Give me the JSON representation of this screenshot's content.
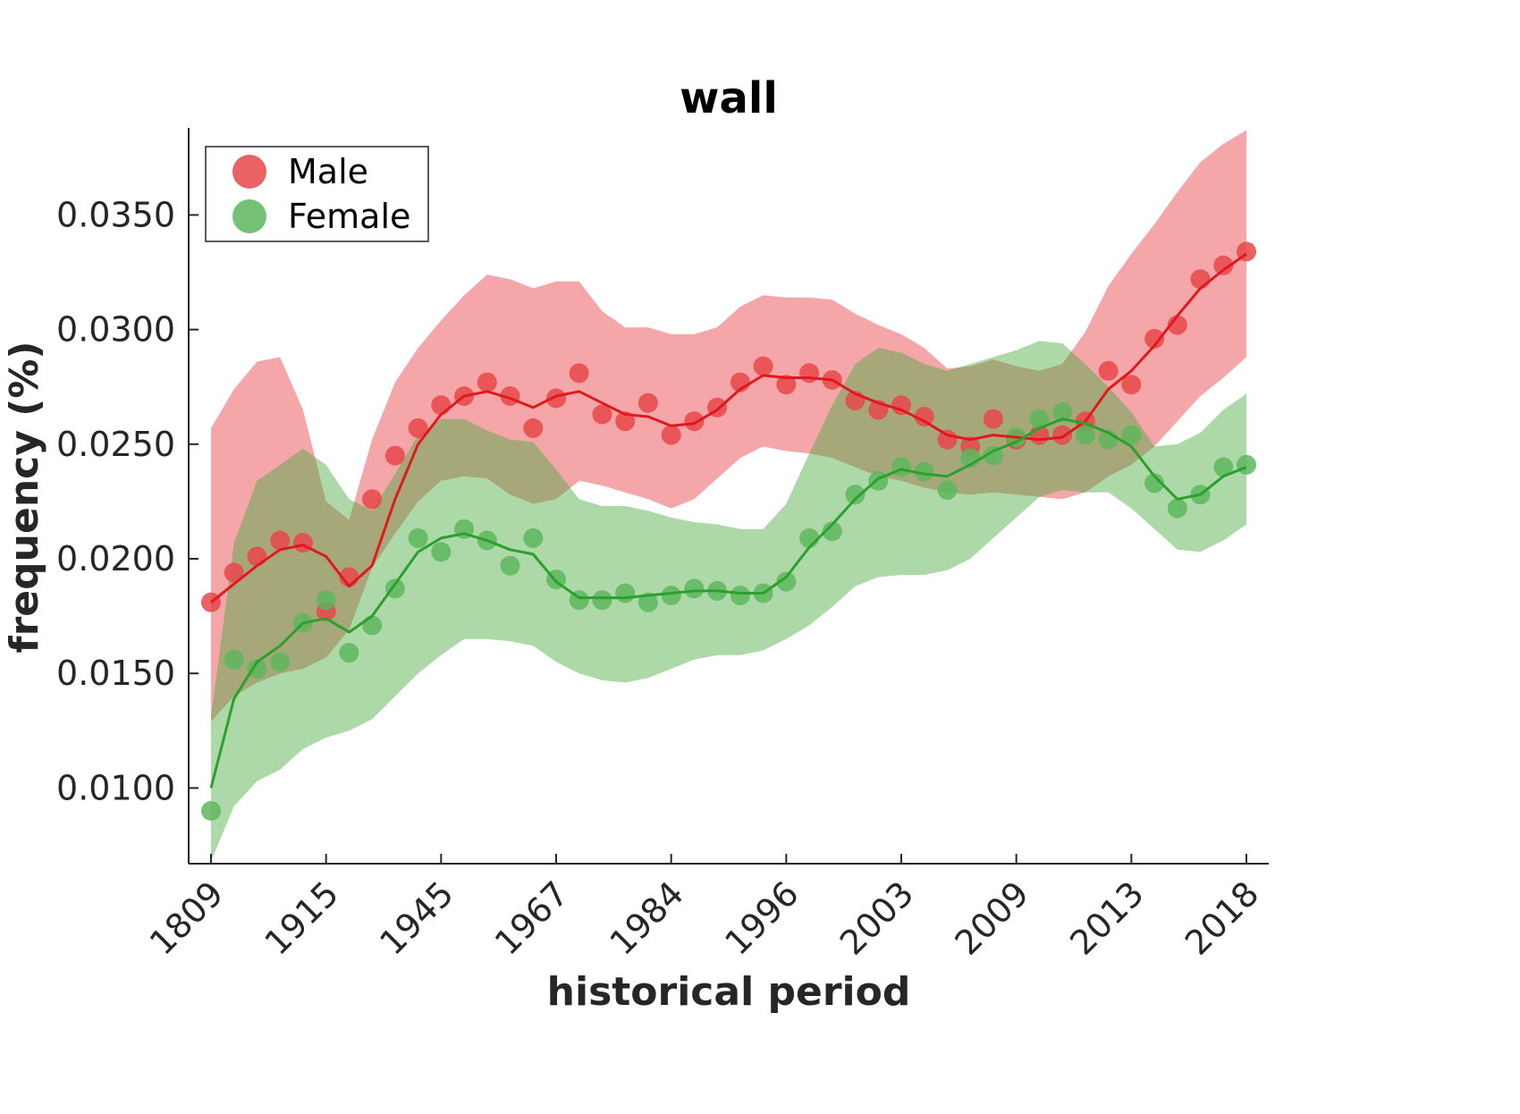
{
  "chart_data": {
    "type": "line",
    "title": "wall",
    "xlabel": "historical period",
    "ylabel": "frequency (%)",
    "x_tick_labels": [
      "1809",
      "1915",
      "1945",
      "1967",
      "1984",
      "1996",
      "2003",
      "2009",
      "2013",
      "2018"
    ],
    "y_tick_labels": [
      "0.0100",
      "0.0150",
      "0.0200",
      "0.0250",
      "0.0300",
      "0.0350"
    ],
    "y_ticks": [
      0.01,
      0.015,
      0.02,
      0.025,
      0.03,
      0.035
    ],
    "ylim": [
      0.0067,
      0.0388
    ],
    "x_index_range": [
      0,
      45
    ],
    "legend_position": "top-left",
    "series": [
      {
        "name": "Male",
        "color": "#e0191e",
        "marker_color": "#e8474a",
        "band_color": "#f4a3a4",
        "points": [
          0.0181,
          0.0194,
          0.0201,
          0.0208,
          0.0207,
          0.0177,
          0.0192,
          0.0226,
          0.0245,
          0.0257,
          0.0267,
          0.0271,
          0.0277,
          0.0271,
          0.0257,
          0.027,
          0.0281,
          0.0263,
          0.026,
          0.0268,
          0.0254,
          0.026,
          0.0266,
          0.0277,
          0.0284,
          0.0276,
          0.0281,
          0.0278,
          0.0269,
          0.0265,
          0.0267,
          0.0262,
          0.0252,
          0.0249,
          0.0261,
          0.0252,
          0.0254,
          0.0254,
          0.026,
          0.0282,
          0.0276,
          0.0296,
          0.0302,
          0.0322,
          0.0328,
          0.0334
        ],
        "trend": [
          0.0181,
          0.0189,
          0.0197,
          0.0204,
          0.0206,
          0.0201,
          0.0188,
          0.0197,
          0.0226,
          0.025,
          0.0263,
          0.0271,
          0.0273,
          0.027,
          0.0266,
          0.0271,
          0.0273,
          0.0268,
          0.0263,
          0.0262,
          0.0258,
          0.0259,
          0.0265,
          0.0274,
          0.028,
          0.0279,
          0.0279,
          0.0278,
          0.0272,
          0.0268,
          0.0265,
          0.026,
          0.0254,
          0.0252,
          0.0254,
          0.0253,
          0.0252,
          0.0253,
          0.026,
          0.0274,
          0.0282,
          0.0293,
          0.0306,
          0.0318,
          0.0326,
          0.0333
        ],
        "band_upper": [
          0.0257,
          0.0274,
          0.0286,
          0.0288,
          0.0265,
          0.0225,
          0.0217,
          0.0252,
          0.0277,
          0.0292,
          0.0304,
          0.0315,
          0.0324,
          0.0322,
          0.0318,
          0.0321,
          0.0321,
          0.0308,
          0.0301,
          0.0301,
          0.0298,
          0.0298,
          0.0301,
          0.031,
          0.0315,
          0.0314,
          0.0314,
          0.0313,
          0.0307,
          0.0302,
          0.0298,
          0.0292,
          0.0283,
          0.0284,
          0.0287,
          0.0284,
          0.0282,
          0.0285,
          0.0299,
          0.0319,
          0.0333,
          0.0346,
          0.036,
          0.0373,
          0.0381,
          0.0387
        ],
        "band_lower": [
          0.0129,
          0.014,
          0.0146,
          0.015,
          0.0152,
          0.0157,
          0.0169,
          0.0196,
          0.0211,
          0.0225,
          0.0234,
          0.0236,
          0.0235,
          0.0228,
          0.0224,
          0.0226,
          0.0234,
          0.0232,
          0.0229,
          0.0226,
          0.0222,
          0.0226,
          0.0235,
          0.0244,
          0.0249,
          0.0247,
          0.0246,
          0.0244,
          0.024,
          0.0236,
          0.0234,
          0.0231,
          0.0229,
          0.0228,
          0.0229,
          0.0228,
          0.0227,
          0.0226,
          0.0229,
          0.0236,
          0.0241,
          0.0249,
          0.026,
          0.0271,
          0.0279,
          0.0288
        ]
      },
      {
        "name": "Female",
        "color": "#2ca02c",
        "marker_color": "#5db65d",
        "band_color": "#aedaa8",
        "points": [
          0.009,
          0.0156,
          0.0152,
          0.0155,
          0.0172,
          0.0182,
          0.0159,
          0.0171,
          0.0187,
          0.0209,
          0.0203,
          0.0213,
          0.0208,
          0.0197,
          0.0209,
          0.0191,
          0.0182,
          0.0182,
          0.0185,
          0.0181,
          0.0184,
          0.0187,
          0.0186,
          0.0184,
          0.0185,
          0.019,
          0.0209,
          0.0212,
          0.0228,
          0.0234,
          0.024,
          0.0238,
          0.023,
          0.0244,
          0.0245,
          0.0253,
          0.0261,
          0.0264,
          0.0254,
          0.0252,
          0.0254,
          0.0233,
          0.0222,
          0.0228,
          0.024,
          0.0241
        ],
        "trend": [
          0.01,
          0.0139,
          0.0155,
          0.0162,
          0.0172,
          0.0174,
          0.0168,
          0.0175,
          0.0189,
          0.0203,
          0.0209,
          0.0211,
          0.0208,
          0.0204,
          0.0202,
          0.019,
          0.0183,
          0.0183,
          0.0183,
          0.0184,
          0.0185,
          0.0186,
          0.0186,
          0.0185,
          0.0185,
          0.0192,
          0.0205,
          0.0215,
          0.0226,
          0.0235,
          0.0239,
          0.0237,
          0.0236,
          0.0241,
          0.0247,
          0.0251,
          0.0257,
          0.0261,
          0.0259,
          0.0255,
          0.0249,
          0.0236,
          0.0226,
          0.0228,
          0.0236,
          0.024
        ],
        "band_upper": [
          0.0131,
          0.0207,
          0.0234,
          0.0241,
          0.0248,
          0.0241,
          0.0226,
          0.0221,
          0.0237,
          0.0254,
          0.0261,
          0.0261,
          0.0256,
          0.0252,
          0.0251,
          0.0239,
          0.0226,
          0.0223,
          0.0223,
          0.0221,
          0.0218,
          0.0216,
          0.0215,
          0.0213,
          0.0213,
          0.0224,
          0.0246,
          0.0267,
          0.0285,
          0.0292,
          0.029,
          0.0285,
          0.0282,
          0.0285,
          0.0288,
          0.0291,
          0.0295,
          0.0294,
          0.0285,
          0.0275,
          0.0264,
          0.0249,
          0.025,
          0.0255,
          0.0265,
          0.0272
        ],
        "band_lower": [
          0.0068,
          0.0092,
          0.0103,
          0.0108,
          0.0117,
          0.0122,
          0.0125,
          0.013,
          0.014,
          0.015,
          0.0158,
          0.0165,
          0.0165,
          0.0164,
          0.0162,
          0.0155,
          0.015,
          0.0147,
          0.0146,
          0.0148,
          0.0152,
          0.0156,
          0.0158,
          0.0158,
          0.016,
          0.0165,
          0.0171,
          0.0179,
          0.0188,
          0.0192,
          0.0193,
          0.0193,
          0.0195,
          0.02,
          0.0209,
          0.0218,
          0.0227,
          0.023,
          0.0229,
          0.0229,
          0.0222,
          0.0213,
          0.0204,
          0.0203,
          0.0208,
          0.0215
        ]
      }
    ]
  }
}
